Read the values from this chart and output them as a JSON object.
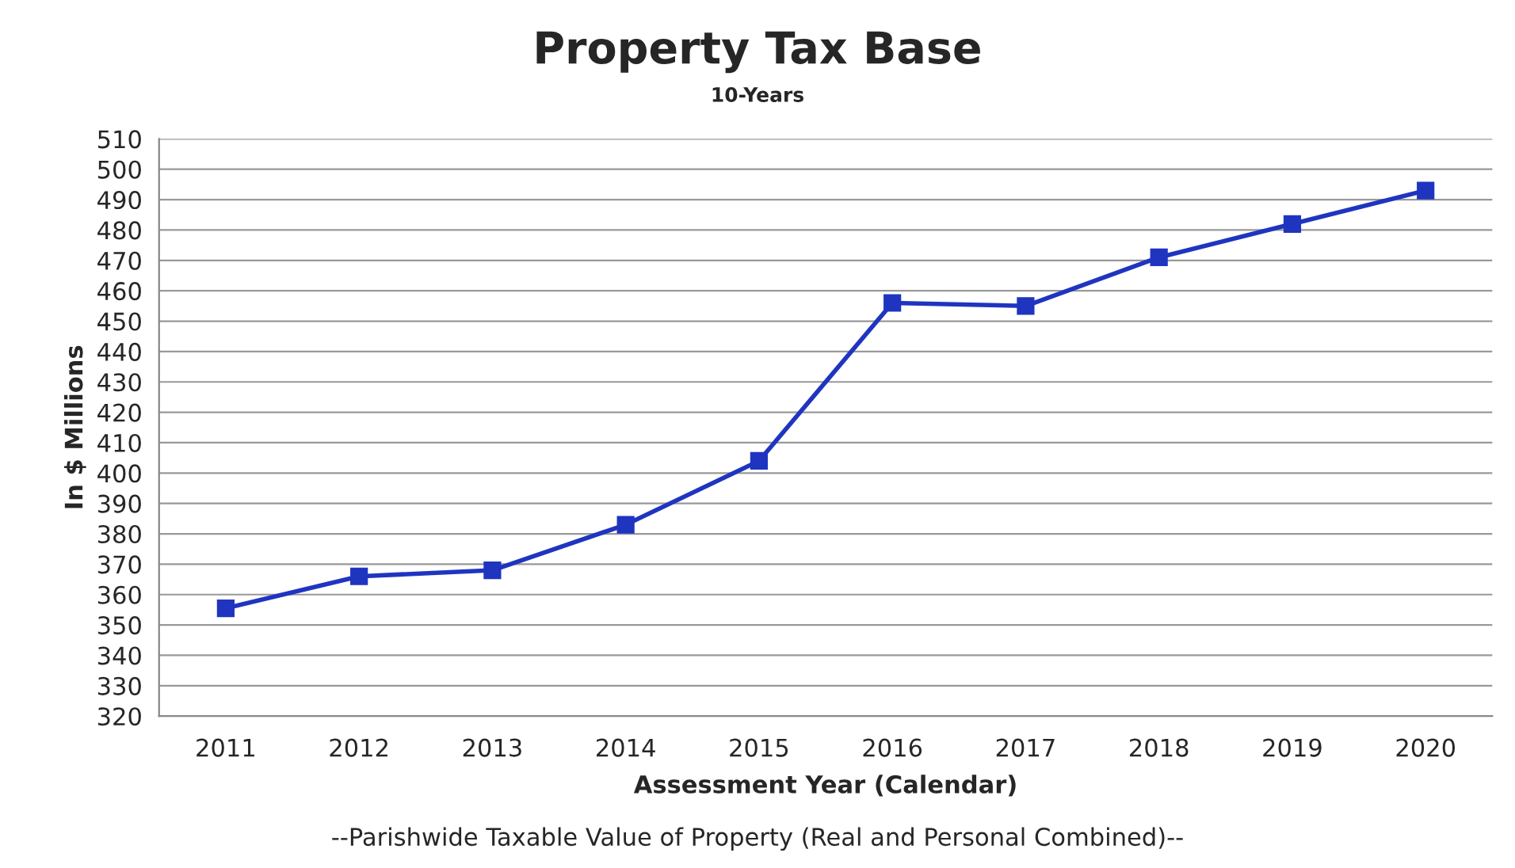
{
  "chart_data": {
    "type": "line",
    "title": "Property Tax Base",
    "subtitle": "10-Years",
    "xlabel": "Assessment Year (Calendar)",
    "ylabel": "In $ Millions",
    "annotations": [
      "--Parishwide Taxable Value of Property (Real and Personal Combined)--"
    ],
    "categories": [
      "2011",
      "2012",
      "2013",
      "2014",
      "2015",
      "2016",
      "2017",
      "2018",
      "2019",
      "2020"
    ],
    "series": [
      {
        "color": "#1f35c0",
        "values": [
          355.5,
          366,
          368,
          383,
          404,
          456,
          455,
          471,
          482,
          493
        ]
      }
    ],
    "ylim": [
      320,
      510
    ],
    "yticks": [
      320,
      330,
      340,
      350,
      360,
      370,
      380,
      390,
      400,
      410,
      420,
      430,
      440,
      450,
      460,
      470,
      480,
      490,
      500,
      510
    ],
    "grid": "y",
    "marker": "square",
    "line_style": "solid",
    "legend": false
  }
}
